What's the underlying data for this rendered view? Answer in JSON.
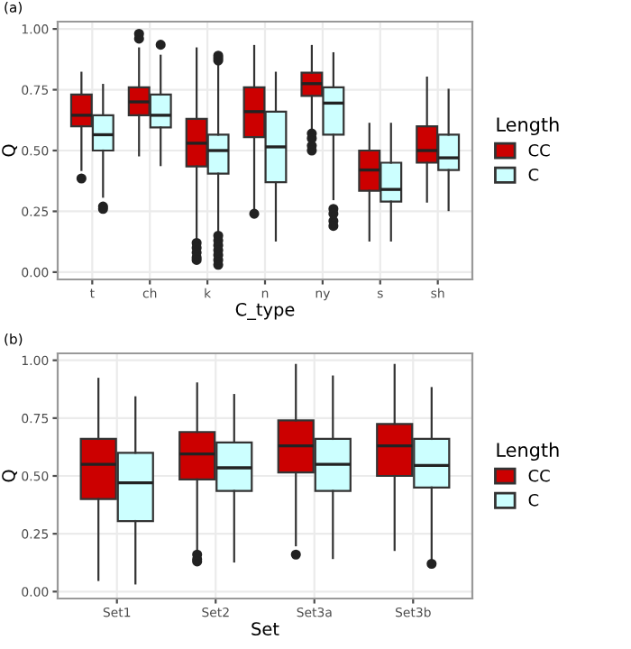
{
  "chart_data": [
    {
      "type": "box",
      "title": "(a)",
      "xlabel": "C_type",
      "ylabel": "Q",
      "legend_title": "Length",
      "legend": "right",
      "grid": true,
      "categories": [
        "t",
        "ch",
        "k",
        "n",
        "ny",
        "s",
        "sh"
      ],
      "ylim": [
        -0.03,
        1.03
      ],
      "yticks": [
        {
          "value": 0,
          "label": "0.00"
        },
        {
          "value": 0.25,
          "label": "0.25"
        },
        {
          "value": 0.5,
          "label": "0.50"
        },
        {
          "value": 0.75,
          "label": "0.75"
        },
        {
          "value": 1,
          "label": "1.00"
        }
      ],
      "series": [
        {
          "name": "CC",
          "color": "#cc0000",
          "boxes": [
            {
              "low": 0.42,
              "q1": 0.6,
              "median": 0.645,
              "q3": 0.73,
              "high": 0.82,
              "outliers": [
                0.385
              ]
            },
            {
              "low": 0.48,
              "q1": 0.645,
              "median": 0.7,
              "q3": 0.76,
              "high": 0.92,
              "outliers": [
                0.96,
                0.98
              ]
            },
            {
              "low": 0.14,
              "q1": 0.435,
              "median": 0.53,
              "q3": 0.63,
              "high": 0.92,
              "outliers": [
                0.12,
                0.1,
                0.08,
                0.06,
                0.05
              ]
            },
            {
              "low": 0.26,
              "q1": 0.555,
              "median": 0.66,
              "q3": 0.76,
              "high": 0.93,
              "outliers": [
                0.24
              ]
            },
            {
              "low": 0.58,
              "q1": 0.725,
              "median": 0.775,
              "q3": 0.82,
              "high": 0.93,
              "outliers": [
                0.57,
                0.55,
                0.52,
                0.5
              ]
            },
            {
              "low": 0.13,
              "q1": 0.335,
              "median": 0.42,
              "q3": 0.5,
              "high": 0.61
            },
            {
              "low": 0.29,
              "q1": 0.45,
              "median": 0.5,
              "q3": 0.6,
              "high": 0.8
            }
          ]
        },
        {
          "name": "C",
          "color": "#ccffff",
          "boxes": [
            {
              "low": 0.31,
              "q1": 0.5,
              "median": 0.565,
              "q3": 0.645,
              "high": 0.77,
              "outliers": [
                0.27,
                0.26
              ]
            },
            {
              "low": 0.44,
              "q1": 0.595,
              "median": 0.645,
              "q3": 0.73,
              "high": 0.89,
              "outliers": [
                0.935
              ]
            },
            {
              "low": 0.16,
              "q1": 0.405,
              "median": 0.5,
              "q3": 0.565,
              "high": 0.86,
              "outliers": [
                0.03,
                0.05,
                0.07,
                0.09,
                0.11,
                0.13,
                0.15,
                0.87,
                0.88,
                0.89
              ]
            },
            {
              "low": 0.13,
              "q1": 0.37,
              "median": 0.515,
              "q3": 0.66,
              "high": 0.82
            },
            {
              "low": 0.3,
              "q1": 0.565,
              "median": 0.695,
              "q3": 0.76,
              "high": 0.9,
              "outliers": [
                0.26,
                0.24,
                0.21,
                0.19
              ]
            },
            {
              "low": 0.13,
              "q1": 0.29,
              "median": 0.34,
              "q3": 0.45,
              "high": 0.61
            },
            {
              "low": 0.255,
              "q1": 0.42,
              "median": 0.47,
              "q3": 0.565,
              "high": 0.75
            }
          ]
        }
      ]
    },
    {
      "type": "box",
      "title": "(b)",
      "xlabel": "Set",
      "ylabel": "Q",
      "legend_title": "Length",
      "legend": "right",
      "grid": true,
      "categories": [
        "Set1",
        "Set2",
        "Set3a",
        "Set3b"
      ],
      "ylim": [
        -0.03,
        1.03
      ],
      "yticks": [
        {
          "value": 0,
          "label": "0.00"
        },
        {
          "value": 0.25,
          "label": "0.25"
        },
        {
          "value": 0.5,
          "label": "0.50"
        },
        {
          "value": 0.75,
          "label": "0.75"
        },
        {
          "value": 1,
          "label": "1.00"
        }
      ],
      "series": [
        {
          "name": "CC",
          "color": "#cc0000",
          "boxes": [
            {
              "low": 0.05,
              "q1": 0.4,
              "median": 0.55,
              "q3": 0.66,
              "high": 0.92
            },
            {
              "low": 0.18,
              "q1": 0.485,
              "median": 0.595,
              "q3": 0.69,
              "high": 0.9,
              "outliers": [
                0.16,
                0.14,
                0.13
              ]
            },
            {
              "low": 0.2,
              "q1": 0.515,
              "median": 0.63,
              "q3": 0.74,
              "high": 0.98,
              "outliers": [
                0.16
              ]
            },
            {
              "low": 0.18,
              "q1": 0.5,
              "median": 0.63,
              "q3": 0.725,
              "high": 0.98
            }
          ]
        },
        {
          "name": "C",
          "color": "#ccffff",
          "boxes": [
            {
              "low": 0.035,
              "q1": 0.305,
              "median": 0.47,
              "q3": 0.6,
              "high": 0.84
            },
            {
              "low": 0.13,
              "q1": 0.435,
              "median": 0.535,
              "q3": 0.645,
              "high": 0.85
            },
            {
              "low": 0.145,
              "q1": 0.435,
              "median": 0.55,
              "q3": 0.66,
              "high": 0.93
            },
            {
              "low": 0.14,
              "q1": 0.45,
              "median": 0.545,
              "q3": 0.66,
              "high": 0.88,
              "outliers": [
                0.12
              ]
            }
          ]
        }
      ]
    }
  ]
}
